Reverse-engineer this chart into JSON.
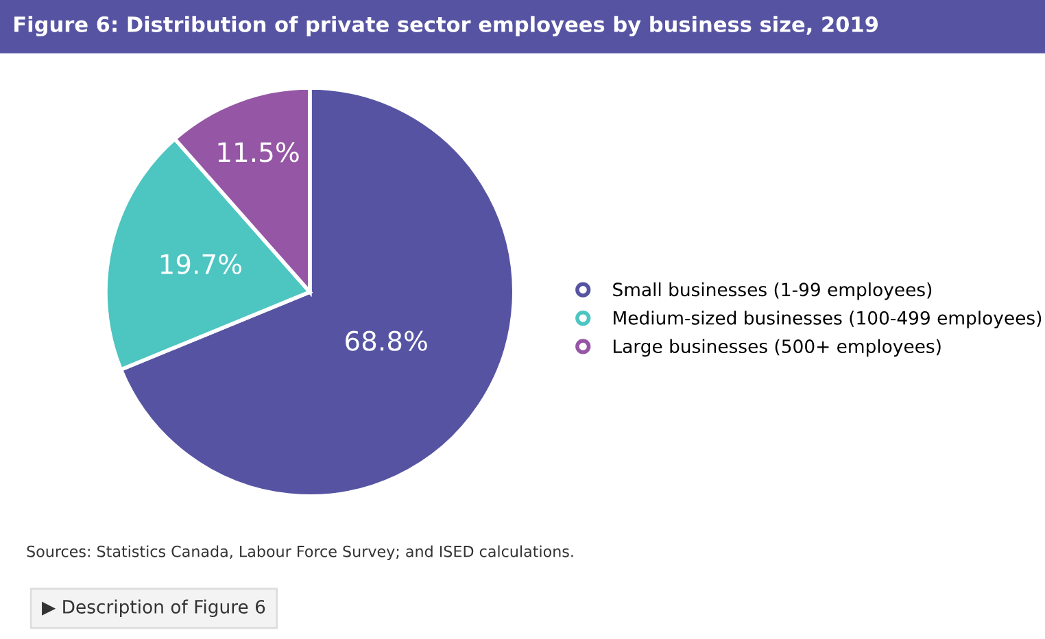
{
  "chart_data": {
    "type": "pie",
    "title": "Figure 6: Distribution of private sector employees by business size, 2019",
    "categories": [
      "Small businesses (1-99 employees)",
      "Medium-sized businesses (100-499 employees)",
      "Large businesses (500+ employees)"
    ],
    "values": [
      68.8,
      19.7,
      11.5
    ],
    "colors": [
      "#5654a2",
      "#4dc5c1",
      "#9557a5"
    ],
    "value_labels": [
      "68.8%",
      "19.7%",
      "11.5%"
    ],
    "legend": "right",
    "annotations": [
      "Sources: Statistics Canada, Labour Force Survey; and ISED calculations.",
      "▶ Description of Figure 6"
    ]
  }
}
